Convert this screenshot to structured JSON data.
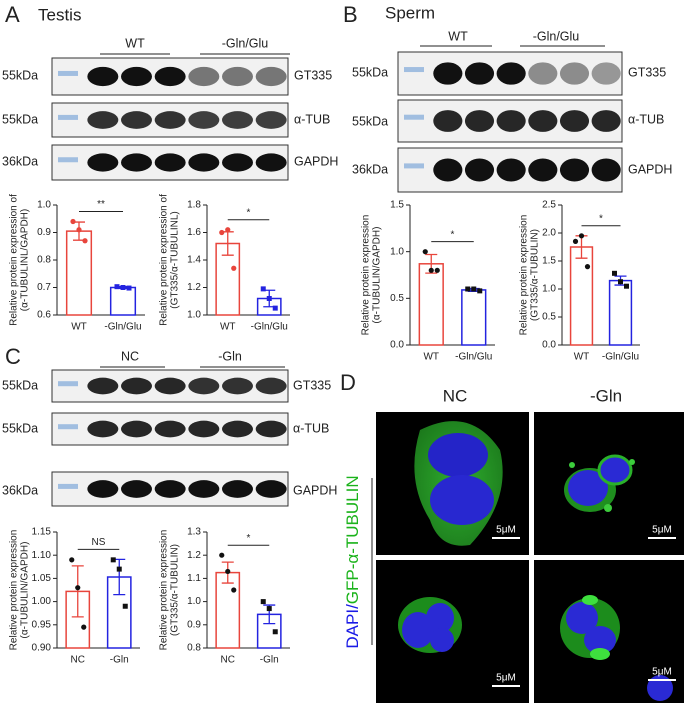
{
  "panel_a": {
    "letter": "A",
    "title": "Testis",
    "groups": [
      "WT",
      "-Gln/Glu"
    ],
    "markers": [
      "55kDa",
      "55kDa",
      "36kDa"
    ],
    "proteins": [
      "GT335",
      "α-TUB",
      "GAPDH"
    ]
  },
  "panel_b": {
    "letter": "B",
    "title": "Sperm",
    "groups": [
      "WT",
      "-Gln/Glu"
    ],
    "markers": [
      "55kDa",
      "55kDa",
      "36kDa"
    ],
    "proteins": [
      "GT335",
      "α-TUB",
      "GAPDH"
    ]
  },
  "panel_c": {
    "letter": "C",
    "groups": [
      "NC",
      "-Gln"
    ],
    "markers": [
      "55kDa",
      "55kDa",
      "36kDa"
    ],
    "proteins": [
      "GT335",
      "α-TUB",
      "GAPDH"
    ]
  },
  "panel_d": {
    "letter": "D",
    "columns": [
      "NC",
      "-Gln"
    ],
    "stain_dapi": "DAPI/",
    "stain_gfp": "GFP-α-TUBULIN",
    "scale": "5μM"
  },
  "chart_data": [
    {
      "type": "bar",
      "ylabel": [
        "Relative protein expression of",
        "(α-TUBULINL/GAPDH)"
      ],
      "categories": [
        "WT",
        "-Gln/Glu"
      ],
      "colors": [
        "#e8453c",
        "#2323e0"
      ],
      "point_colors": [
        "#e8453c",
        "#2323e0"
      ],
      "values": [
        0.905,
        0.7
      ],
      "errors": [
        0.033,
        0.003
      ],
      "points": [
        [
          0.94,
          0.91,
          0.87
        ],
        [
          0.703,
          0.7,
          0.698
        ]
      ],
      "significance": "**",
      "ylim": [
        0.6,
        1.0
      ],
      "yticks": [
        0.6,
        0.7,
        0.8,
        0.9,
        {
          "value": 1.0,
          "label": "1.0"
        }
      ]
    },
    {
      "type": "bar",
      "ylabel": [
        "Relative protein expression of",
        "(GT335/α-TUBULINL)"
      ],
      "categories": [
        "WT",
        "-Gln/Glu"
      ],
      "colors": [
        "#e8453c",
        "#2323e0"
      ],
      "point_colors": [
        "#e8453c",
        "#2323e0"
      ],
      "values": [
        1.52,
        1.12
      ],
      "errors": [
        0.085,
        0.06
      ],
      "points": [
        [
          1.6,
          1.62,
          1.34
        ],
        [
          1.19,
          1.12,
          1.05
        ]
      ],
      "significance": "*",
      "ylim": [
        1.0,
        1.8
      ],
      "yticks": [
        {
          "value": 1.0,
          "label": "1.0"
        },
        1.2,
        1.4,
        1.6,
        1.8
      ]
    },
    {
      "type": "bar",
      "ylabel": [
        "Relative protein expression",
        "(α-TUBULIN/GAPDH)"
      ],
      "categories": [
        "WT",
        "-Gln/Glu"
      ],
      "colors": [
        "#e8453c",
        "#2323e0"
      ],
      "point_colors": [
        "#111111",
        "#111111"
      ],
      "values": [
        0.87,
        0.59
      ],
      "errors": [
        0.1,
        0.015
      ],
      "points": [
        [
          1.0,
          0.8,
          0.8
        ],
        [
          0.6,
          0.6,
          0.58
        ]
      ],
      "significance": "*",
      "ylim": [
        0,
        1.5
      ],
      "yticks": [
        {
          "value": 0,
          "label": "0.0"
        },
        0.5,
        {
          "value": 1.0,
          "label": "1.0"
        },
        1.5
      ]
    },
    {
      "type": "bar",
      "ylabel": [
        "Relative protein expression",
        "(GT335/α-TUBULIN)"
      ],
      "categories": [
        "WT",
        "-Gln/Glu"
      ],
      "colors": [
        "#e8453c",
        "#2323e0"
      ],
      "point_colors": [
        "#111111",
        "#111111"
      ],
      "values": [
        1.75,
        1.15
      ],
      "errors": [
        0.2,
        0.08
      ],
      "points": [
        [
          1.85,
          1.95,
          1.4
        ],
        [
          1.28,
          1.13,
          1.05
        ]
      ],
      "significance": "*",
      "ylim": [
        0,
        2.5
      ],
      "yticks": [
        {
          "value": 0,
          "label": "0.0"
        },
        0.5,
        {
          "value": 1.0,
          "label": "1.0"
        },
        1.5,
        {
          "value": 2.0,
          "label": "2.0"
        },
        2.5
      ]
    },
    {
      "type": "bar",
      "ylabel": [
        "Relative protein expression",
        "(α-TUBULIN/GAPDH)"
      ],
      "categories": [
        "NC",
        "-Gln"
      ],
      "colors": [
        "#e8453c",
        "#2323e0"
      ],
      "point_colors": [
        "#111111",
        "#111111"
      ],
      "values": [
        1.022,
        1.053
      ],
      "errors": [
        0.055,
        0.038
      ],
      "points": [
        [
          1.09,
          1.03,
          0.945
        ],
        [
          1.09,
          1.07,
          0.99
        ]
      ],
      "significance": "NS",
      "ylim": [
        0.9,
        1.15
      ],
      "yticks": [
        {
          "value": 0.9,
          "label": "0.90"
        },
        0.95,
        {
          "value": 1.0,
          "label": "1.00"
        },
        1.05,
        {
          "value": 1.1,
          "label": "1.10"
        },
        1.15
      ]
    },
    {
      "type": "bar",
      "ylabel": [
        "Relative protein expression",
        "(GT335/α-TUBULIN)"
      ],
      "categories": [
        "NC",
        "-Gln"
      ],
      "colors": [
        "#e8453c",
        "#2323e0"
      ],
      "point_colors": [
        "#111111",
        "#111111"
      ],
      "values": [
        1.125,
        0.945
      ],
      "errors": [
        0.045,
        0.04
      ],
      "points": [
        [
          1.2,
          1.13,
          1.05
        ],
        [
          1.0,
          0.97,
          0.87
        ]
      ],
      "significance": "*",
      "ylim": [
        0.8,
        1.3
      ],
      "yticks": [
        0.8,
        0.9,
        {
          "value": 1.0,
          "label": "1.0"
        },
        1.1,
        1.2,
        1.3
      ]
    }
  ]
}
